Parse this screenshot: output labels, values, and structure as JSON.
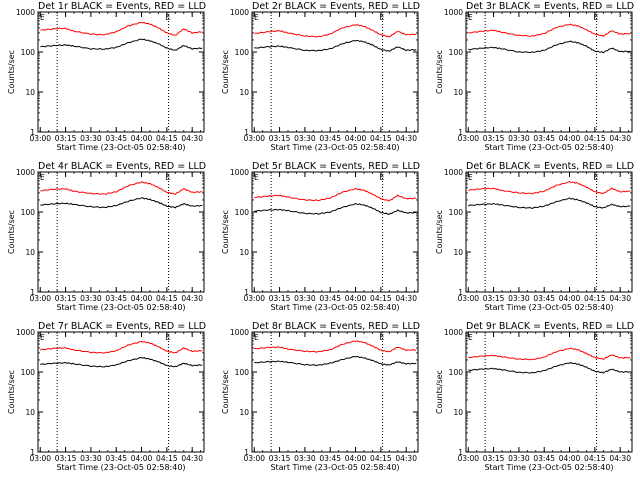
{
  "figure": {
    "xlabel": "Start Time (23-Oct-05 02:58:40)",
    "ylabel": "Counts/sec",
    "colors": {
      "events": "#000000",
      "lld": "#ff0000",
      "axes": "#000000",
      "marker": "#000000"
    }
  },
  "chart_data": [
    {
      "type": "line",
      "title": "Det 1r BLACK = Events, RED = LLD",
      "flag": "E",
      "xlabel": "Start Time (23-Oct-05 02:58:40)",
      "ylabel": "Counts/sec",
      "x_ticks": [
        "03:00",
        "03:15",
        "03:30",
        "03:45",
        "04:00",
        "04:15",
        "04:30"
      ],
      "y_ticks": [
        "1",
        "10",
        "100",
        "1000"
      ],
      "xlim": [
        "02:58:40",
        "04:37:00"
      ],
      "ylim": [
        1,
        1000
      ],
      "yscale": "log",
      "marker_lines": [
        "03:10",
        "04:16"
      ],
      "x": [
        "03:00",
        "03:08",
        "03:15",
        "03:20",
        "03:30",
        "03:38",
        "03:45",
        "03:52",
        "04:00",
        "04:05",
        "04:10",
        "04:15",
        "04:20",
        "04:25",
        "04:30",
        "04:36"
      ],
      "series": [
        {
          "name": "LLD",
          "color": "#ff0000",
          "values": [
            350,
            380,
            390,
            330,
            280,
            270,
            320,
            450,
            550,
            500,
            400,
            300,
            260,
            380,
            300,
            320
          ]
        },
        {
          "name": "Events",
          "color": "#000000",
          "values": [
            135,
            145,
            150,
            140,
            120,
            118,
            130,
            170,
            210,
            190,
            160,
            125,
            110,
            145,
            120,
            125
          ]
        }
      ]
    },
    {
      "type": "line",
      "title": "Det 2r BLACK = Events, RED = LLD",
      "flag": "E",
      "xlabel": "Start Time (23-Oct-05 02:58:40)",
      "ylabel": "Counts/sec",
      "x_ticks": [
        "03:00",
        "03:15",
        "03:30",
        "03:45",
        "04:00",
        "04:15",
        "04:30"
      ],
      "y_ticks": [
        "1",
        "10",
        "100",
        "1000"
      ],
      "xlim": [
        "02:58:40",
        "04:37:00"
      ],
      "ylim": [
        1,
        1000
      ],
      "yscale": "log",
      "marker_lines": [
        "03:10",
        "04:16"
      ],
      "x": [
        "03:00",
        "03:08",
        "03:15",
        "03:20",
        "03:30",
        "03:38",
        "03:45",
        "03:52",
        "04:00",
        "04:05",
        "04:10",
        "04:15",
        "04:20",
        "04:25",
        "04:30",
        "04:36"
      ],
      "series": [
        {
          "name": "LLD",
          "color": "#ff0000",
          "values": [
            290,
            320,
            340,
            300,
            250,
            240,
            280,
            400,
            480,
            440,
            350,
            270,
            240,
            330,
            270,
            280
          ]
        },
        {
          "name": "Events",
          "color": "#000000",
          "values": [
            125,
            135,
            140,
            130,
            110,
            108,
            120,
            160,
            195,
            180,
            150,
            115,
            105,
            135,
            110,
            115
          ]
        }
      ]
    },
    {
      "type": "line",
      "title": "Det 3r BLACK = Events, RED = LLD",
      "flag": "E",
      "xlabel": "Start Time (23-Oct-05 02:58:40)",
      "ylabel": "Counts/sec",
      "x_ticks": [
        "03:00",
        "03:15",
        "03:30",
        "03:45",
        "04:00",
        "04:15",
        "04:30"
      ],
      "y_ticks": [
        "1",
        "10",
        "100",
        "1000"
      ],
      "xlim": [
        "02:58:40",
        "04:37:00"
      ],
      "ylim": [
        1,
        1000
      ],
      "yscale": "log",
      "marker_lines": [
        "03:10",
        "04:16"
      ],
      "x": [
        "03:00",
        "03:08",
        "03:15",
        "03:20",
        "03:30",
        "03:38",
        "03:45",
        "03:52",
        "04:00",
        "04:05",
        "04:10",
        "04:15",
        "04:20",
        "04:25",
        "04:30",
        "04:36"
      ],
      "series": [
        {
          "name": "LLD",
          "color": "#ff0000",
          "values": [
            300,
            330,
            350,
            310,
            260,
            250,
            290,
            410,
            490,
            450,
            360,
            280,
            250,
            340,
            280,
            290
          ]
        },
        {
          "name": "Events",
          "color": "#000000",
          "values": [
            115,
            125,
            130,
            120,
            100,
            98,
            110,
            150,
            185,
            170,
            140,
            105,
            98,
            125,
            102,
            105
          ]
        }
      ]
    },
    {
      "type": "line",
      "title": "Det 4r BLACK = Events, RED = LLD",
      "flag": "E",
      "xlabel": "Start Time (23-Oct-05 02:58:40)",
      "ylabel": "Counts/sec",
      "x_ticks": [
        "03:00",
        "03:15",
        "03:30",
        "03:45",
        "04:00",
        "04:15",
        "04:30"
      ],
      "y_ticks": [
        "1",
        "10",
        "100",
        "1000"
      ],
      "xlim": [
        "02:58:40",
        "04:37:00"
      ],
      "ylim": [
        1,
        1000
      ],
      "yscale": "log",
      "marker_lines": [
        "03:10",
        "04:16"
      ],
      "x": [
        "03:00",
        "03:08",
        "03:15",
        "03:20",
        "03:30",
        "03:38",
        "03:45",
        "03:52",
        "04:00",
        "04:05",
        "04:10",
        "04:15",
        "04:20",
        "04:25",
        "04:30",
        "04:36"
      ],
      "series": [
        {
          "name": "LLD",
          "color": "#ff0000",
          "values": [
            340,
            370,
            380,
            330,
            290,
            280,
            320,
            450,
            560,
            510,
            410,
            310,
            280,
            380,
            310,
            320
          ]
        },
        {
          "name": "Events",
          "color": "#000000",
          "values": [
            150,
            160,
            165,
            155,
            135,
            130,
            145,
            185,
            225,
            205,
            175,
            140,
            130,
            160,
            140,
            145
          ]
        }
      ]
    },
    {
      "type": "line",
      "title": "Det 5r BLACK = Events, RED = LLD",
      "flag": "E",
      "xlabel": "Start Time (23-Oct-05 02:58:40)",
      "ylabel": "Counts/sec",
      "x_ticks": [
        "03:00",
        "03:15",
        "03:30",
        "03:45",
        "04:00",
        "04:15",
        "04:30"
      ],
      "y_ticks": [
        "1",
        "10",
        "100",
        "1000"
      ],
      "xlim": [
        "02:58:40",
        "04:37:00"
      ],
      "ylim": [
        1,
        1000
      ],
      "yscale": "log",
      "marker_lines": [
        "03:10",
        "04:16"
      ],
      "x": [
        "03:00",
        "03:08",
        "03:15",
        "03:20",
        "03:30",
        "03:38",
        "03:45",
        "03:52",
        "04:00",
        "04:05",
        "04:10",
        "04:15",
        "04:20",
        "04:25",
        "04:30",
        "04:36"
      ],
      "series": [
        {
          "name": "LLD",
          "color": "#ff0000",
          "values": [
            230,
            250,
            260,
            235,
            200,
            195,
            225,
            310,
            380,
            350,
            280,
            215,
            190,
            260,
            215,
            220
          ]
        },
        {
          "name": "Events",
          "color": "#000000",
          "values": [
            105,
            112,
            115,
            108,
            92,
            90,
            100,
            130,
            160,
            150,
            125,
            98,
            88,
            110,
            95,
            96
          ]
        }
      ]
    },
    {
      "type": "line",
      "title": "Det 6r BLACK = Events, RED = LLD",
      "flag": "E",
      "xlabel": "Start Time (23-Oct-05 02:58:40)",
      "ylabel": "Counts/sec",
      "x_ticks": [
        "03:00",
        "03:15",
        "03:30",
        "03:45",
        "04:00",
        "04:15",
        "04:30"
      ],
      "y_ticks": [
        "1",
        "10",
        "100",
        "1000"
      ],
      "xlim": [
        "02:58:40",
        "04:37:00"
      ],
      "ylim": [
        1,
        1000
      ],
      "yscale": "log",
      "marker_lines": [
        "03:10",
        "04:16"
      ],
      "x": [
        "03:00",
        "03:08",
        "03:15",
        "03:20",
        "03:30",
        "03:38",
        "03:45",
        "03:52",
        "04:00",
        "04:05",
        "04:10",
        "04:15",
        "04:20",
        "04:25",
        "04:30",
        "04:36"
      ],
      "series": [
        {
          "name": "LLD",
          "color": "#ff0000",
          "values": [
            350,
            380,
            390,
            345,
            300,
            290,
            330,
            460,
            570,
            520,
            420,
            320,
            290,
            390,
            320,
            330
          ]
        },
        {
          "name": "Events",
          "color": "#000000",
          "values": [
            145,
            155,
            160,
            150,
            130,
            126,
            140,
            180,
            220,
            200,
            170,
            136,
            126,
            155,
            136,
            140
          ]
        }
      ]
    },
    {
      "type": "line",
      "title": "Det 7r BLACK = Events, RED = LLD",
      "flag": "E",
      "xlabel": "Start Time (23-Oct-05 02:58:40)",
      "ylabel": "Counts/sec",
      "x_ticks": [
        "03:00",
        "03:15",
        "03:30",
        "03:45",
        "04:00",
        "04:15",
        "04:30"
      ],
      "y_ticks": [
        "1",
        "10",
        "100",
        "1000"
      ],
      "xlim": [
        "02:58:40",
        "04:37:00"
      ],
      "ylim": [
        1,
        1000
      ],
      "yscale": "log",
      "marker_lines": [
        "03:10",
        "04:16"
      ],
      "x": [
        "03:00",
        "03:08",
        "03:15",
        "03:20",
        "03:30",
        "03:38",
        "03:45",
        "03:52",
        "04:00",
        "04:05",
        "04:10",
        "04:15",
        "04:20",
        "04:25",
        "04:30",
        "04:36"
      ],
      "series": [
        {
          "name": "LLD",
          "color": "#ff0000",
          "values": [
            360,
            390,
            400,
            355,
            310,
            300,
            340,
            470,
            580,
            530,
            430,
            330,
            300,
            400,
            330,
            340
          ]
        },
        {
          "name": "Events",
          "color": "#000000",
          "values": [
            155,
            165,
            170,
            160,
            140,
            135,
            150,
            190,
            230,
            210,
            180,
            145,
            135,
            165,
            145,
            150
          ]
        }
      ]
    },
    {
      "type": "line",
      "title": "Det 8r BLACK = Events, RED = LLD",
      "flag": "E",
      "xlabel": "Start Time (23-Oct-05 02:58:40)",
      "ylabel": "Counts/sec",
      "x_ticks": [
        "03:00",
        "03:15",
        "03:30",
        "03:45",
        "04:00",
        "04:15",
        "04:30"
      ],
      "y_ticks": [
        "1",
        "10",
        "100",
        "1000"
      ],
      "xlim": [
        "02:58:40",
        "04:37:00"
      ],
      "ylim": [
        1,
        1000
      ],
      "yscale": "log",
      "marker_lines": [
        "03:10",
        "04:16"
      ],
      "x": [
        "03:00",
        "03:08",
        "03:15",
        "03:20",
        "03:30",
        "03:38",
        "03:45",
        "03:52",
        "04:00",
        "04:05",
        "04:10",
        "04:15",
        "04:20",
        "04:25",
        "04:30",
        "04:36"
      ],
      "series": [
        {
          "name": "LLD",
          "color": "#ff0000",
          "values": [
            380,
            410,
            420,
            375,
            330,
            320,
            360,
            490,
            600,
            550,
            450,
            350,
            320,
            420,
            350,
            360
          ]
        },
        {
          "name": "Events",
          "color": "#000000",
          "values": [
            170,
            180,
            185,
            175,
            152,
            148,
            165,
            205,
            245,
            225,
            195,
            160,
            150,
            180,
            160,
            165
          ]
        }
      ]
    },
    {
      "type": "line",
      "title": "Det 9r BLACK = Events, RED = LLD",
      "flag": "E",
      "xlabel": "Start Time (23-Oct-05 02:58:40)",
      "ylabel": "Counts/sec",
      "x_ticks": [
        "03:00",
        "03:15",
        "03:30",
        "03:45",
        "04:00",
        "04:15",
        "04:30"
      ],
      "y_ticks": [
        "1",
        "10",
        "100",
        "1000"
      ],
      "xlim": [
        "02:58:40",
        "04:37:00"
      ],
      "ylim": [
        1,
        1000
      ],
      "yscale": "log",
      "marker_lines": [
        "03:10",
        "04:16"
      ],
      "x": [
        "03:00",
        "03:08",
        "03:15",
        "03:20",
        "03:30",
        "03:38",
        "03:45",
        "03:52",
        "04:00",
        "04:05",
        "04:10",
        "04:15",
        "04:20",
        "04:25",
        "04:30",
        "04:36"
      ],
      "series": [
        {
          "name": "LLD",
          "color": "#ff0000",
          "values": [
            230,
            250,
            260,
            240,
            210,
            205,
            235,
            320,
            390,
            360,
            290,
            230,
            210,
            270,
            225,
            230
          ]
        },
        {
          "name": "Events",
          "color": "#000000",
          "values": [
            110,
            118,
            122,
            114,
            98,
            95,
            108,
            140,
            170,
            158,
            132,
            104,
            96,
            118,
            100,
            102
          ]
        }
      ]
    }
  ]
}
